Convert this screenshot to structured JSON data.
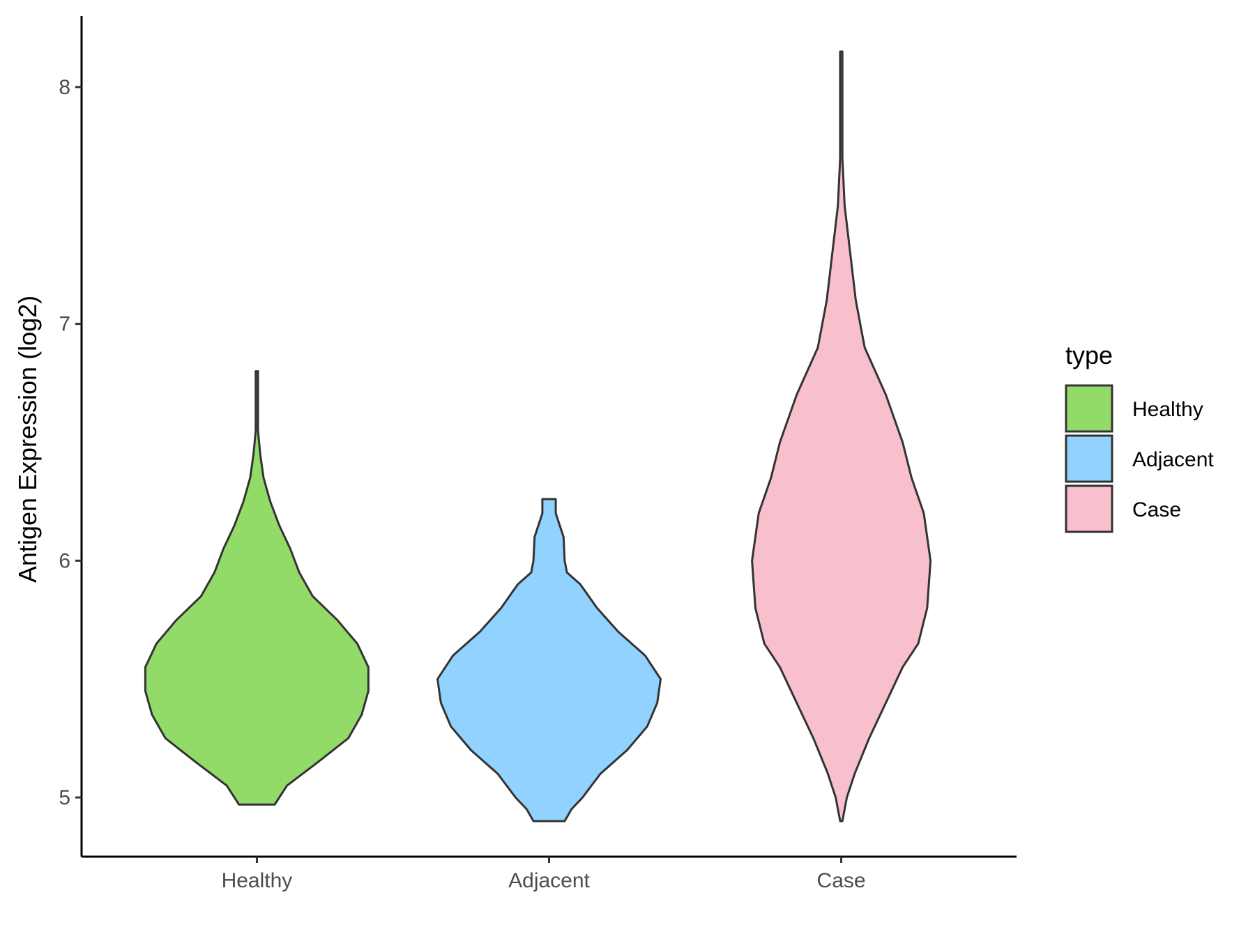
{
  "chart_data": {
    "type": "violin",
    "categories": [
      "Healthy",
      "Adjacent",
      "Case"
    ],
    "ylabel": "Antigen Expression (log2)",
    "xlabel": "",
    "ylim": [
      4.75,
      8.3
    ],
    "yticks": [
      5,
      6,
      7,
      8
    ],
    "grid": false,
    "legend": {
      "title": "type",
      "position": "right",
      "entries": [
        "Healthy",
        "Adjacent",
        "Case"
      ]
    },
    "colors": {
      "Healthy": "#93DB69",
      "Adjacent": "#92D2FF",
      "Case": "#F8C0CC",
      "outline": "#333333"
    },
    "series": [
      {
        "category": "Healthy",
        "min": 4.97,
        "max": 6.8,
        "density": [
          [
            4.97,
            0.16
          ],
          [
            5.05,
            0.27
          ],
          [
            5.15,
            0.55
          ],
          [
            5.25,
            0.82
          ],
          [
            5.35,
            0.94
          ],
          [
            5.45,
            1.0
          ],
          [
            5.55,
            1.0
          ],
          [
            5.65,
            0.9
          ],
          [
            5.75,
            0.72
          ],
          [
            5.85,
            0.5
          ],
          [
            5.95,
            0.38
          ],
          [
            6.05,
            0.3
          ],
          [
            6.15,
            0.2
          ],
          [
            6.25,
            0.12
          ],
          [
            6.35,
            0.06
          ],
          [
            6.45,
            0.03
          ],
          [
            6.55,
            0.01
          ],
          [
            6.65,
            0.01
          ],
          [
            6.8,
            0.01
          ]
        ]
      },
      {
        "category": "Adjacent",
        "min": 4.9,
        "max": 6.26,
        "density": [
          [
            4.9,
            0.14
          ],
          [
            4.95,
            0.2
          ],
          [
            5.0,
            0.3
          ],
          [
            5.1,
            0.46
          ],
          [
            5.2,
            0.7
          ],
          [
            5.3,
            0.88
          ],
          [
            5.4,
            0.97
          ],
          [
            5.5,
            1.0
          ],
          [
            5.6,
            0.86
          ],
          [
            5.7,
            0.62
          ],
          [
            5.8,
            0.43
          ],
          [
            5.9,
            0.28
          ],
          [
            5.95,
            0.16
          ],
          [
            6.0,
            0.14
          ],
          [
            6.1,
            0.13
          ],
          [
            6.2,
            0.06
          ],
          [
            6.26,
            0.06
          ]
        ]
      },
      {
        "category": "Case",
        "min": 4.9,
        "max": 8.15,
        "density": [
          [
            4.9,
            0.01
          ],
          [
            5.0,
            0.05
          ],
          [
            5.1,
            0.12
          ],
          [
            5.25,
            0.25
          ],
          [
            5.4,
            0.4
          ],
          [
            5.55,
            0.55
          ],
          [
            5.65,
            0.69
          ],
          [
            5.8,
            0.77
          ],
          [
            6.0,
            0.8
          ],
          [
            6.2,
            0.74
          ],
          [
            6.35,
            0.63
          ],
          [
            6.5,
            0.55
          ],
          [
            6.7,
            0.4
          ],
          [
            6.9,
            0.21
          ],
          [
            7.1,
            0.13
          ],
          [
            7.3,
            0.08
          ],
          [
            7.5,
            0.03
          ],
          [
            7.7,
            0.01
          ],
          [
            7.9,
            0.01
          ],
          [
            8.15,
            0.01
          ]
        ]
      }
    ]
  }
}
